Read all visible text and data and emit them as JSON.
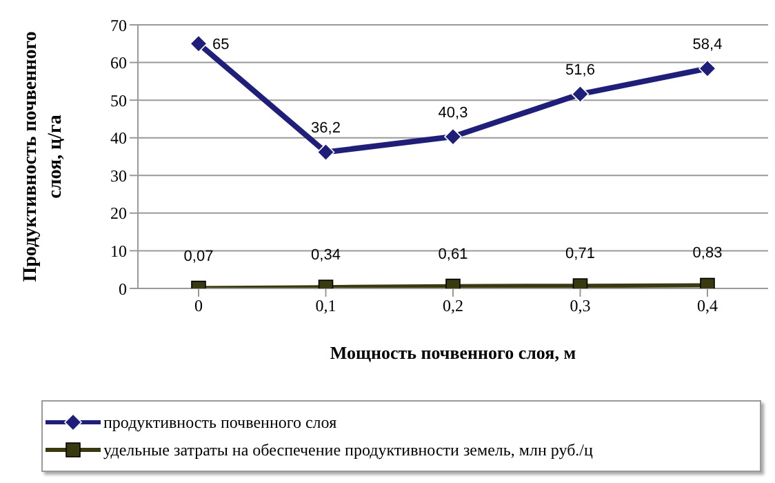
{
  "chart_data": {
    "type": "line",
    "xlabel": "Мощность почвенного слоя, м",
    "ylabel": "Продуктивность почвенного слоя, ц/га",
    "categories": [
      "0",
      "0,1",
      "0,2",
      "0,3",
      "0,4"
    ],
    "series": [
      {
        "name": "продуктивность почвенного слоя",
        "color": "#1f1f7a",
        "marker": "diamond",
        "values": [
          65,
          36.2,
          40.3,
          51.6,
          58.4
        ],
        "value_labels": [
          "65",
          "36,2",
          "40,3",
          "51,6",
          "58,4"
        ]
      },
      {
        "name": "удельные затраты на обеспечение продуктивности земель, млн руб./ц",
        "color": "#3a3a10",
        "marker": "square",
        "values": [
          0.07,
          0.34,
          0.61,
          0.71,
          0.83
        ],
        "value_labels": [
          "0,07",
          "0,34",
          "0,61",
          "0,71",
          "0,83"
        ]
      }
    ],
    "ylim": [
      0,
      70
    ],
    "yticks": [
      0,
      10,
      20,
      30,
      40,
      50,
      60,
      70
    ],
    "grid": "y",
    "legend": "bottom"
  }
}
